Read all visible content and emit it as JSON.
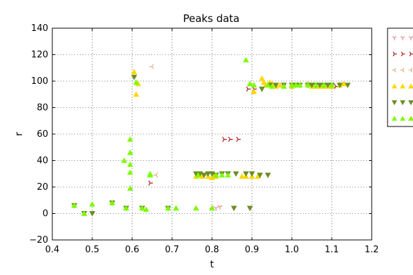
{
  "chart_data": {
    "type": "scatter",
    "title": "Peaks data",
    "xlabel": "t",
    "ylabel": "r",
    "xlim": [
      0.4,
      1.2
    ],
    "ylim": [
      -20,
      140
    ],
    "xticks": [
      "0.4",
      "0.5",
      "0.6",
      "0.7",
      "0.8",
      "0.9",
      "1.0",
      "1.1",
      "1.2"
    ],
    "yticks": [
      "−20",
      "0",
      "20",
      "40",
      "60",
      "80",
      "100",
      "120",
      "140"
    ],
    "grid": true,
    "legend": {
      "placement": "right, outside plot (partially cut off)"
    },
    "series": [
      {
        "marker": "tri_down",
        "color": "#e09a9a",
        "points": [
          [
            0.81,
            4
          ],
          [
            0.82,
            5
          ]
        ]
      },
      {
        "marker": "tri_right",
        "color": "#b22222",
        "points": [
          [
            0.645,
            23
          ],
          [
            0.83,
            56
          ],
          [
            0.845,
            56
          ],
          [
            0.865,
            56
          ],
          [
            0.89,
            94
          ],
          [
            0.905,
            94
          ],
          [
            1.11,
            96
          ],
          [
            1.12,
            97
          ]
        ]
      },
      {
        "marker": "tri_left",
        "color": "#e0b48a",
        "points": [
          [
            0.65,
            111
          ],
          [
            0.66,
            29
          ],
          [
            0.79,
            29
          ],
          [
            0.8,
            4
          ],
          [
            0.81,
            29
          ]
        ]
      },
      {
        "marker": "triangle_up",
        "color": "#ffd700",
        "points": [
          [
            0.605,
            107
          ],
          [
            0.61,
            90
          ],
          [
            0.615,
            98
          ],
          [
            0.76,
            28
          ],
          [
            0.775,
            28
          ],
          [
            0.79,
            28
          ],
          [
            0.8,
            27
          ],
          [
            0.805,
            28
          ],
          [
            0.81,
            28
          ],
          [
            0.875,
            28
          ],
          [
            0.885,
            28
          ],
          [
            0.9,
            28
          ],
          [
            0.905,
            92
          ],
          [
            0.915,
            28
          ],
          [
            0.925,
            102
          ],
          [
            0.93,
            99
          ],
          [
            0.935,
            97
          ],
          [
            0.945,
            99
          ],
          [
            0.95,
            98
          ],
          [
            0.96,
            96
          ],
          [
            0.97,
            97
          ],
          [
            1.0,
            96
          ],
          [
            1.02,
            97
          ],
          [
            1.04,
            98
          ],
          [
            1.05,
            96
          ],
          [
            1.06,
            96
          ],
          [
            1.07,
            96
          ],
          [
            1.08,
            96
          ],
          [
            1.09,
            96
          ],
          [
            1.1,
            96
          ],
          [
            1.12,
            97
          ],
          [
            1.13,
            98
          ]
        ]
      },
      {
        "marker": "triangle_down",
        "color": "#6b8e23",
        "points": [
          [
            0.455,
            6
          ],
          [
            0.48,
            0
          ],
          [
            0.5,
            0
          ],
          [
            0.55,
            8
          ],
          [
            0.585,
            4
          ],
          [
            0.605,
            103
          ],
          [
            0.625,
            4
          ],
          [
            0.69,
            4
          ],
          [
            0.76,
            30
          ],
          [
            0.77,
            30
          ],
          [
            0.78,
            29
          ],
          [
            0.79,
            30
          ],
          [
            0.8,
            30
          ],
          [
            0.81,
            29
          ],
          [
            0.825,
            30
          ],
          [
            0.84,
            30
          ],
          [
            0.855,
            4
          ],
          [
            0.86,
            30
          ],
          [
            0.885,
            30
          ],
          [
            0.895,
            4
          ],
          [
            0.9,
            30
          ],
          [
            0.92,
            29
          ],
          [
            0.925,
            94
          ],
          [
            0.94,
            29
          ],
          [
            0.945,
            97
          ],
          [
            0.96,
            97
          ],
          [
            0.98,
            97
          ],
          [
            1.0,
            97
          ],
          [
            1.01,
            97
          ],
          [
            1.02,
            97
          ],
          [
            1.04,
            97
          ],
          [
            1.05,
            97
          ],
          [
            1.06,
            97
          ],
          [
            1.07,
            97
          ],
          [
            1.08,
            97
          ],
          [
            1.09,
            97
          ],
          [
            1.1,
            97
          ],
          [
            1.12,
            97
          ],
          [
            1.14,
            97
          ]
        ]
      },
      {
        "marker": "triangle_up",
        "color": "#7cfc00",
        "points": [
          [
            0.455,
            6
          ],
          [
            0.48,
            0
          ],
          [
            0.5,
            7
          ],
          [
            0.55,
            8
          ],
          [
            0.58,
            40
          ],
          [
            0.585,
            4
          ],
          [
            0.595,
            56
          ],
          [
            0.595,
            46
          ],
          [
            0.595,
            37
          ],
          [
            0.595,
            31
          ],
          [
            0.595,
            19
          ],
          [
            0.61,
            99
          ],
          [
            0.625,
            4
          ],
          [
            0.635,
            3
          ],
          [
            0.645,
            30
          ],
          [
            0.645,
            29
          ],
          [
            0.69,
            4
          ],
          [
            0.71,
            4
          ],
          [
            0.76,
            4
          ],
          [
            0.765,
            29
          ],
          [
            0.8,
            4
          ],
          [
            0.81,
            29
          ],
          [
            0.825,
            29
          ],
          [
            0.84,
            29
          ],
          [
            0.885,
            116
          ],
          [
            0.895,
            98
          ],
          [
            0.905,
            97
          ],
          [
            0.94,
            97
          ],
          [
            0.95,
            96
          ],
          [
            0.98,
            96
          ],
          [
            1.0,
            97
          ],
          [
            1.01,
            97
          ],
          [
            1.02,
            97
          ],
          [
            1.04,
            97
          ],
          [
            1.06,
            97
          ],
          [
            1.08,
            97
          ],
          [
            1.1,
            97
          ]
        ]
      }
    ]
  }
}
